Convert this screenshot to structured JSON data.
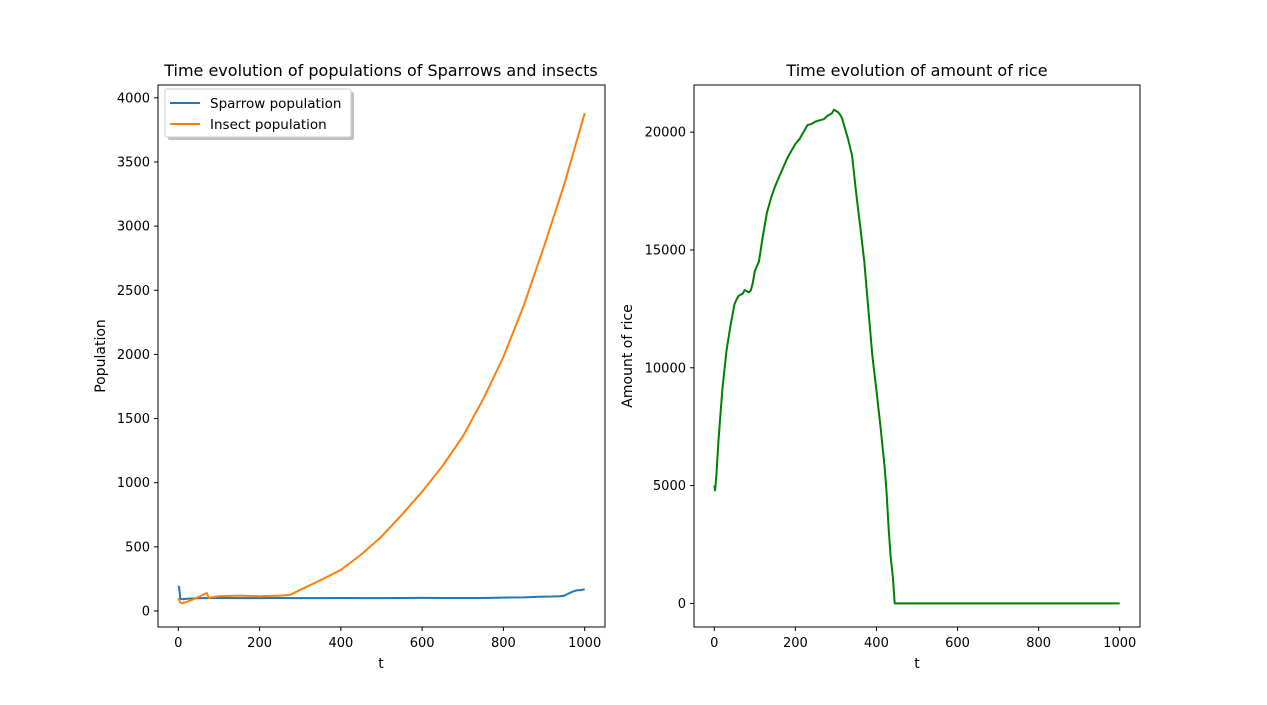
{
  "chart_data": [
    {
      "type": "line",
      "title": "Time evolution of populations of Sparrows and insects",
      "xlabel": "t",
      "ylabel": "Population",
      "xlim": [
        -50,
        1050
      ],
      "ylim": [
        -125,
        4100
      ],
      "xticks": [
        0,
        200,
        400,
        600,
        800,
        1000
      ],
      "yticks": [
        0,
        500,
        1000,
        1500,
        2000,
        2500,
        3000,
        3500,
        4000
      ],
      "grid": false,
      "legend": {
        "location": "upper left"
      },
      "series": [
        {
          "name": "Sparrow population",
          "color": "#1f77b4",
          "x": [
            0,
            2,
            5,
            10,
            20,
            40,
            60,
            80,
            100,
            150,
            200,
            250,
            300,
            350,
            400,
            450,
            500,
            550,
            600,
            650,
            700,
            750,
            800,
            850,
            880,
            900,
            920,
            940,
            950,
            960,
            970,
            980,
            990,
            1000
          ],
          "y": [
            195,
            185,
            95,
            92,
            95,
            98,
            100,
            101,
            101,
            100,
            100,
            101,
            100,
            100,
            101,
            100,
            100,
            101,
            102,
            101,
            101,
            101,
            104,
            106,
            110,
            112,
            113,
            115,
            120,
            135,
            150,
            160,
            163,
            170
          ]
        },
        {
          "name": "Insect population",
          "color": "#ff7f0e",
          "x": [
            0,
            5,
            10,
            20,
            40,
            60,
            70,
            75,
            80,
            100,
            150,
            200,
            250,
            275,
            300,
            350,
            400,
            450,
            500,
            550,
            600,
            650,
            700,
            750,
            800,
            850,
            900,
            950,
            1000
          ],
          "y": [
            100,
            65,
            60,
            70,
            95,
            125,
            140,
            100,
            105,
            115,
            120,
            115,
            120,
            125,
            165,
            240,
            320,
            440,
            580,
            750,
            930,
            1130,
            1360,
            1650,
            1980,
            2380,
            2840,
            3330,
            3880
          ]
        }
      ]
    },
    {
      "type": "line",
      "title": "Time evolution of amount of rice",
      "xlabel": "t",
      "ylabel": "Amount of rice",
      "xlim": [
        -50,
        1050
      ],
      "ylim": [
        -1000,
        22000
      ],
      "xticks": [
        0,
        200,
        400,
        600,
        800,
        1000
      ],
      "yticks": [
        0,
        5000,
        10000,
        15000,
        20000
      ],
      "grid": false,
      "series": [
        {
          "color": "#008000",
          "x": [
            0,
            2,
            5,
            10,
            15,
            20,
            30,
            40,
            50,
            55,
            60,
            70,
            75,
            80,
            85,
            90,
            95,
            100,
            105,
            110,
            120,
            130,
            140,
            150,
            160,
            170,
            180,
            190,
            200,
            210,
            220,
            230,
            240,
            250,
            260,
            270,
            280,
            290,
            295,
            300,
            305,
            310,
            315,
            320,
            330,
            340,
            350,
            360,
            370,
            380,
            390,
            400,
            410,
            420,
            425,
            430,
            435,
            440,
            445,
            1000
          ],
          "y": [
            5000,
            4800,
            5400,
            6800,
            8000,
            9100,
            10700,
            11800,
            12700,
            12900,
            13050,
            13150,
            13300,
            13250,
            13200,
            13280,
            13600,
            14100,
            14300,
            14500,
            15600,
            16600,
            17200,
            17700,
            18100,
            18500,
            18900,
            19200,
            19500,
            19700,
            20000,
            20300,
            20350,
            20450,
            20500,
            20550,
            20700,
            20800,
            20950,
            20900,
            20850,
            20750,
            20600,
            20300,
            19700,
            19000,
            17400,
            16000,
            14500,
            12500,
            10500,
            9000,
            7500,
            5800,
            4700,
            3200,
            2000,
            1200,
            0,
            0
          ]
        }
      ]
    }
  ]
}
